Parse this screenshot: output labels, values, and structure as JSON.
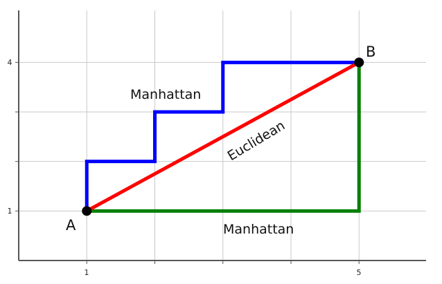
{
  "chart_data": {
    "type": "line",
    "grid": true,
    "xlim": [
      0,
      6
    ],
    "ylim": [
      0,
      5
    ],
    "x_ticks": [
      1,
      5
    ],
    "y_ticks": [
      1,
      4
    ],
    "points": [
      {
        "name": "A",
        "x": 1,
        "y": 1
      },
      {
        "name": "B",
        "x": 5,
        "y": 4
      }
    ],
    "paths": [
      {
        "label": "Manhattan",
        "color": "#0000ff",
        "points": [
          [
            1,
            1
          ],
          [
            1,
            2
          ],
          [
            2,
            2
          ],
          [
            2,
            3
          ],
          [
            3,
            3
          ],
          [
            3,
            4
          ],
          [
            5,
            4
          ]
        ]
      },
      {
        "label": "Manhattan",
        "color": "#008000",
        "points": [
          [
            1,
            1
          ],
          [
            5,
            1
          ],
          [
            5,
            4
          ]
        ]
      },
      {
        "label": "Euclidean",
        "color": "#ff0000",
        "points": [
          [
            1,
            1
          ],
          [
            5,
            4
          ]
        ]
      }
    ]
  }
}
